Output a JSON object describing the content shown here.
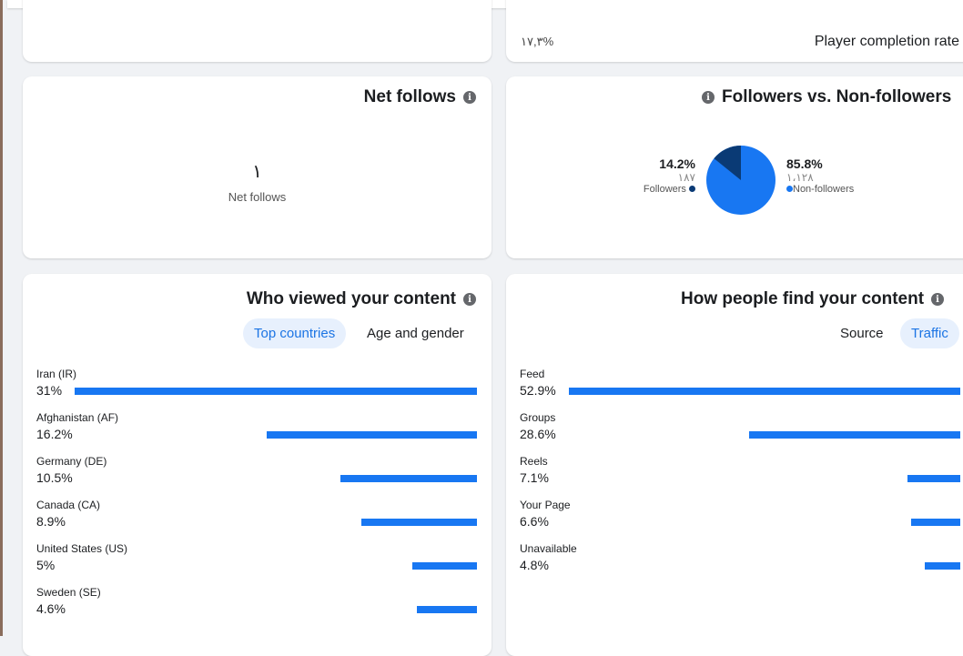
{
  "player_completion": {
    "label": "Player completion rate",
    "value": "١٧,٣%"
  },
  "net_follows": {
    "title": "Net follows",
    "value": "١",
    "label": "Net follows"
  },
  "followers": {
    "title": "Followers vs. Non-followers",
    "followers": {
      "pct": "14.2%",
      "count": "١٨٧",
      "label": "Followers",
      "value": 14.2,
      "color": "#0a3a75"
    },
    "non_followers": {
      "pct": "85.8%",
      "count": "١،١٢٨",
      "label": "Non-followers",
      "value": 85.8,
      "color": "#1877f2"
    }
  },
  "who_viewed": {
    "title": "Who viewed your content",
    "tabs": [
      {
        "label": "Top countries",
        "active": true
      },
      {
        "label": "Age and gender",
        "active": false
      }
    ],
    "items": [
      {
        "label": "Iran (IR)",
        "pct": "31%",
        "value": 31
      },
      {
        "label": "Afghanistan (AF)",
        "pct": "16.2%",
        "value": 16.2
      },
      {
        "label": "Germany (DE)",
        "pct": "10.5%",
        "value": 10.5
      },
      {
        "label": "Canada (CA)",
        "pct": "8.9%",
        "value": 8.9
      },
      {
        "label": "United States (US)",
        "pct": "5%",
        "value": 5
      },
      {
        "label": "Sweden (SE)",
        "pct": "4.6%",
        "value": 4.6
      }
    ]
  },
  "how_find": {
    "title": "How people find your content",
    "tabs": [
      {
        "label": "Source",
        "active": false
      },
      {
        "label": "Traffic",
        "active": true
      }
    ],
    "items": [
      {
        "label": "Feed",
        "pct": "52.9%",
        "value": 52.9
      },
      {
        "label": "Groups",
        "pct": "28.6%",
        "value": 28.6
      },
      {
        "label": "Reels",
        "pct": "7.1%",
        "value": 7.1
      },
      {
        "label": "Your Page",
        "pct": "6.6%",
        "value": 6.6
      },
      {
        "label": "Unavailable",
        "pct": "4.8%",
        "value": 4.8
      }
    ]
  }
}
